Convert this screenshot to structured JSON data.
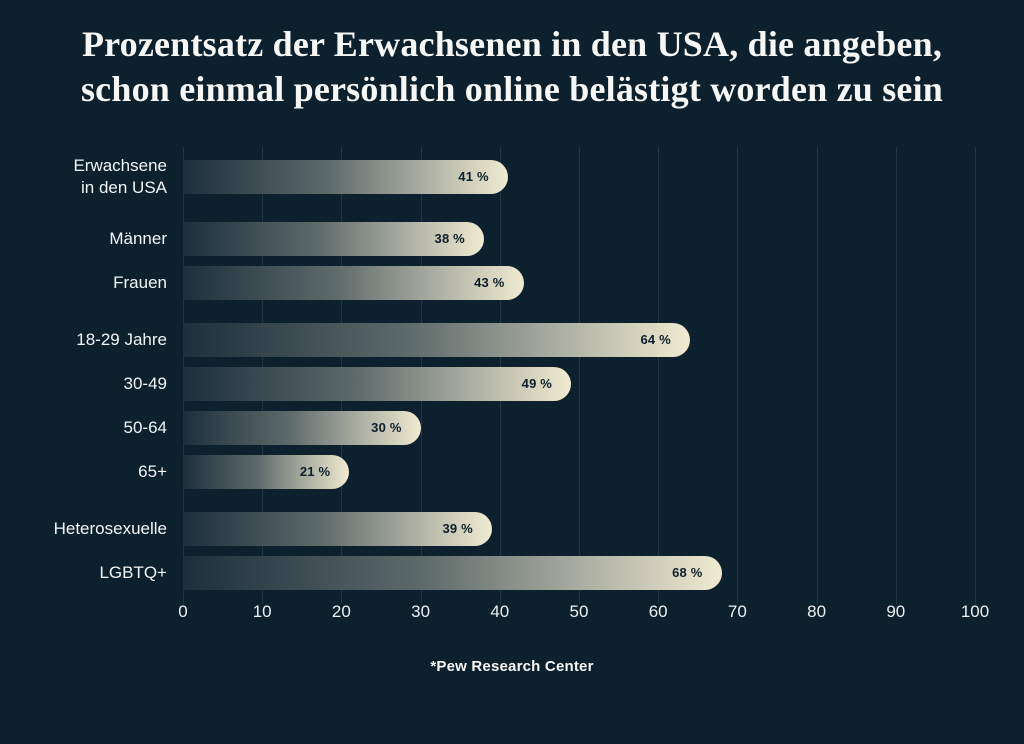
{
  "page": {
    "title_lines": [
      "Prozentsatz der Erwachsenen in den USA, die angeben,",
      "schon einmal persönlich online belästigt worden zu sein"
    ],
    "source": "*Pew Research Center"
  },
  "colors": {
    "background": "#0D202E",
    "text": "#F2F5F6",
    "gridline": "rgba(255,255,255,0.10)",
    "bar_gradient_start": "#1C2F3C",
    "bar_gradient_end": "#F0EAD1",
    "value_text": "#0C1F2C"
  },
  "chart_data": {
    "type": "bar",
    "orientation": "horizontal",
    "title": "Prozentsatz der Erwachsenen in den USA, die angeben, schon einmal persönlich online belästigt worden zu sein",
    "categories": [
      "Erwachsene\nin den USA",
      "Männer",
      "Frauen",
      "18-29 Jahre",
      "30-49",
      "50-64",
      "65+",
      "Heterosexuelle",
      "LGBTQ+"
    ],
    "values": [
      41,
      38,
      43,
      64,
      49,
      30,
      21,
      39,
      68
    ],
    "value_labels": [
      "41 %",
      "38 %",
      "43 %",
      "64 %",
      "49 %",
      "30 %",
      "21 %",
      "39 %",
      "68 %"
    ],
    "groups": [
      [
        0
      ],
      [
        1,
        2
      ],
      [
        3,
        4,
        5,
        6
      ],
      [
        7,
        8
      ]
    ],
    "xlim": [
      0,
      100
    ],
    "x_ticks": [
      "0",
      "10",
      "20",
      "30",
      "40",
      "50",
      "60",
      "70",
      "80",
      "90",
      "100"
    ],
    "grid": true,
    "legend": false,
    "source": "*Pew Research Center"
  }
}
